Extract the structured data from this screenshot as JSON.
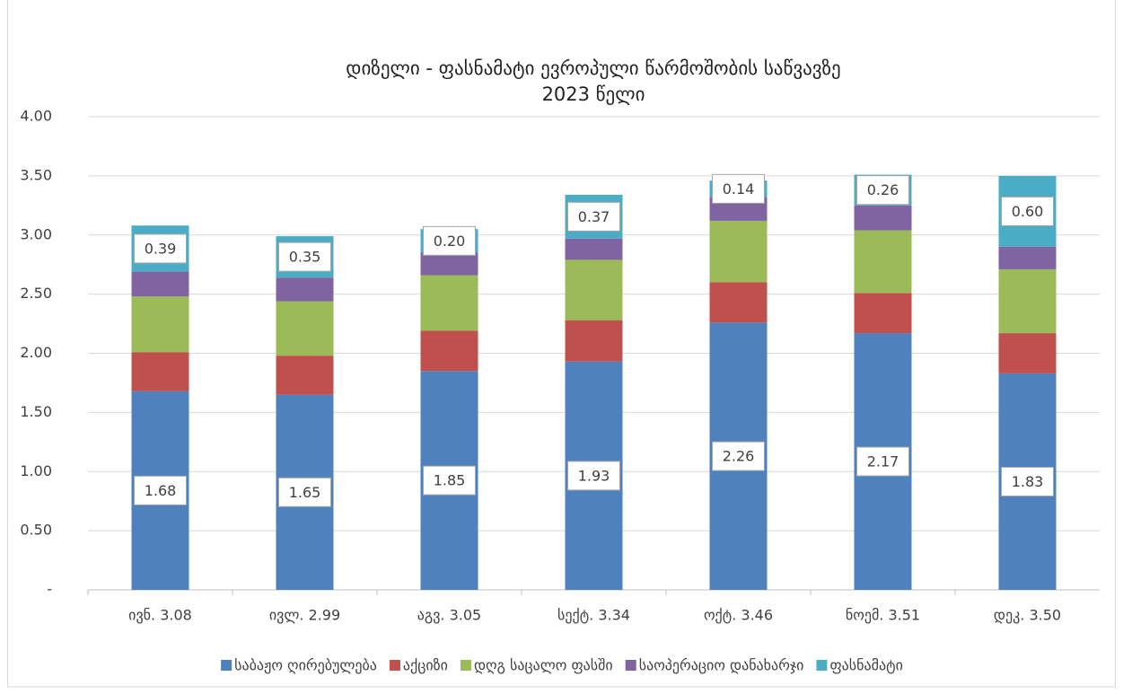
{
  "chart_data": {
    "type": "stacked_bar",
    "title": [
      "დიზელი - ფასნამატი ევროპული წარმოშობის საწვავზე",
      "2023 წელი"
    ],
    "categories": [
      "ივნ. 3.08",
      "ივლ. 2.99",
      "აგვ. 3.05",
      "სექტ. 3.34",
      "ოქტ. 3.46",
      "ნოემ. 3.51",
      "დეკ. 3.50"
    ],
    "series": [
      {
        "name": "საბაჟო ღირებულება",
        "color": "#4f81bd",
        "values": [
          1.68,
          1.65,
          1.85,
          1.93,
          2.26,
          2.17,
          1.83
        ],
        "value_labels": [
          "1.68",
          "1.65",
          "1.85",
          "1.93",
          "2.26",
          "2.17",
          "1.83"
        ]
      },
      {
        "name": "აქციზი",
        "color": "#c0504d",
        "values": [
          0.33,
          0.33,
          0.34,
          0.35,
          0.34,
          0.34,
          0.34
        ]
      },
      {
        "name": "დღგ საცალო ფასში",
        "color": "#9bbb59",
        "values": [
          0.47,
          0.46,
          0.47,
          0.51,
          0.52,
          0.53,
          0.54
        ]
      },
      {
        "name": "საოპერაციო დანახარჯი",
        "color": "#8064a2",
        "values": [
          0.21,
          0.2,
          0.19,
          0.18,
          0.2,
          0.21,
          0.19
        ]
      },
      {
        "name": "ფასნამატი",
        "color": "#4bacc6",
        "values": [
          0.39,
          0.35,
          0.2,
          0.37,
          0.14,
          0.26,
          0.6
        ],
        "value_labels": [
          "0.39",
          "0.35",
          "0.20",
          "0.37",
          "0.14",
          "0.26",
          "0.60"
        ]
      }
    ],
    "ylim": [
      0,
      4
    ],
    "yticks": [
      {
        "value": 0,
        "label": "-"
      },
      {
        "value": 0.5,
        "label": "0.50"
      },
      {
        "value": 1,
        "label": "1.00"
      },
      {
        "value": 1.5,
        "label": "1.50"
      },
      {
        "value": 2,
        "label": "2.00"
      },
      {
        "value": 2.5,
        "label": "2.50"
      },
      {
        "value": 3,
        "label": "3.00"
      },
      {
        "value": 3.5,
        "label": "3.50"
      },
      {
        "value": 4,
        "label": "4.00"
      }
    ],
    "grid": true,
    "legend": "bottom"
  }
}
